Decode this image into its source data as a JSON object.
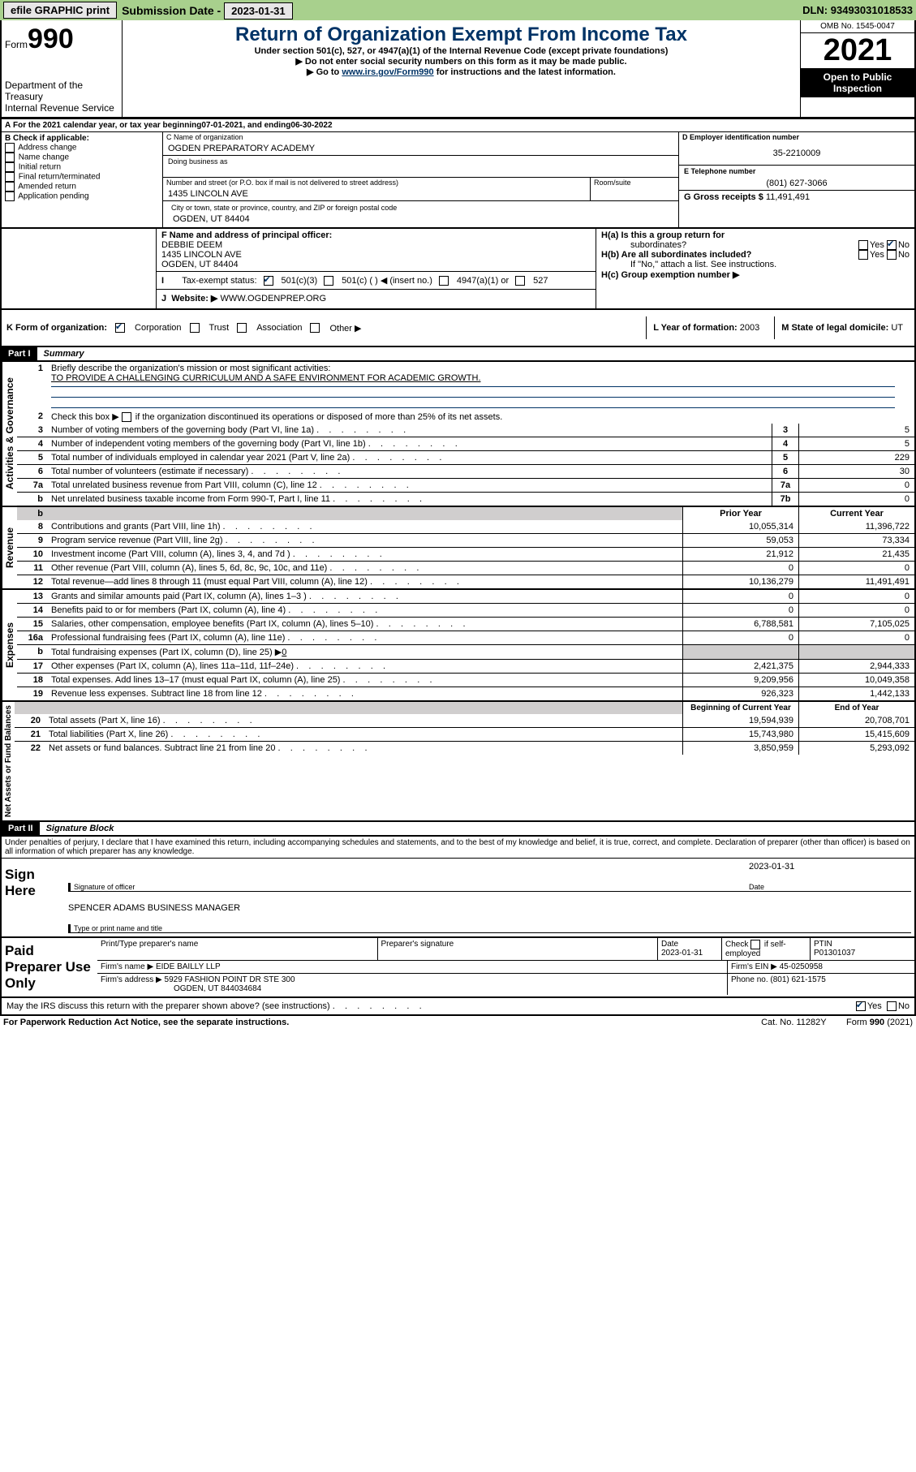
{
  "topbar": {
    "efile": "efile GRAPHIC print",
    "subdate_lbl": "Submission Date - ",
    "subdate": "2023-01-31",
    "dln_lbl": "DLN: ",
    "dln": "93493031018533"
  },
  "hdr": {
    "form": "Form",
    "num": "990",
    "title": "Return of Organization Exempt From Income Tax",
    "sub1": "Under section 501(c), 527, or 4947(a)(1) of the Internal Revenue Code (except private foundations)",
    "sub2": "▶ Do not enter social security numbers on this form as it may be made public.",
    "sub3": "▶ Go to ",
    "link": "www.irs.gov/Form990",
    "sub3b": " for instructions and the latest information.",
    "dept": "Department of the Treasury",
    "irs": "Internal Revenue Service",
    "omb": "OMB No. 1545-0047",
    "year": "2021",
    "inspect": "Open to Public Inspection"
  },
  "A": {
    "txt": "For the 2021 calendar year, or tax year beginning ",
    "beg": "07-01-2021",
    "mid": " , and ending ",
    "end": "06-30-2022"
  },
  "B": {
    "hdr": "B Check if applicable:",
    "items": [
      "Address change",
      "Name change",
      "Initial return",
      "Final return/terminated",
      "Amended return",
      "Application pending"
    ]
  },
  "C": {
    "namehdr": "C Name of organization",
    "name": "OGDEN PREPARATORY ACADEMY",
    "dba": "Doing business as",
    "addrhdr": "Number and street (or P.O. box if mail is not delivered to street address)",
    "room": "Room/suite",
    "addr": "1435 LINCOLN AVE",
    "cityhdr": "City or town, state or province, country, and ZIP or foreign postal code",
    "city": "OGDEN, UT  84404"
  },
  "D": {
    "hdr": "D Employer identification number",
    "ein": "35-2210009"
  },
  "E": {
    "hdr": "E Telephone number",
    "tel": "(801) 627-3066"
  },
  "G": {
    "lbl": "G Gross receipts $ ",
    "val": "11,491,491"
  },
  "F": {
    "hdr": "F Name and address of principal officer:",
    "name": "DEBBIE DEEM",
    "addr1": "1435 LINCOLN AVE",
    "addr2": "OGDEN, UT  84404"
  },
  "H": {
    "a": "H(a)  Is this a group return for",
    "a2": "subordinates?",
    "b": "H(b)  Are all subordinates included?",
    "note": "If \"No,\" attach a list. See instructions.",
    "c": "H(c)  Group exemption number ▶",
    "yes": "Yes",
    "no": "No"
  },
  "I": {
    "lbl": "Tax-exempt status:",
    "c3": "501(c)(3)",
    "c": "501(c) (   ) ◀ (insert no.)",
    "a1": "4947(a)(1) or",
    "s527": "527"
  },
  "J": {
    "lbl": "Website: ▶",
    "val": " WWW.OGDENPREP.ORG"
  },
  "K": {
    "lbl": "K Form of organization:",
    "corp": "Corporation",
    "trust": "Trust",
    "assoc": "Association",
    "other": "Other ▶"
  },
  "L": {
    "lbl": "L Year of formation: ",
    "val": "2003"
  },
  "M": {
    "lbl": "M State of legal domicile: ",
    "val": "UT"
  },
  "part1": {
    "bar": "Part I",
    "lbl": "Summary"
  },
  "gov": {
    "side": "Activities & Governance",
    "l1": "Briefly describe the organization's mission or most significant activities:",
    "l1txt": "TO PROVIDE A CHALLENGING CURRICULUM AND A SAFE ENVIRONMENT FOR ACADEMIC GROWTH.",
    "l2": "Check this box ▶ ",
    "l2b": " if the organization discontinued its operations or disposed of more than 25% of its net assets.",
    "rows": [
      {
        "n": "3",
        "t": "Number of voting members of the governing body (Part VI, line 1a)",
        "b": "3",
        "v": "5"
      },
      {
        "n": "4",
        "t": "Number of independent voting members of the governing body (Part VI, line 1b)",
        "b": "4",
        "v": "5"
      },
      {
        "n": "5",
        "t": "Total number of individuals employed in calendar year 2021 (Part V, line 2a)",
        "b": "5",
        "v": "229"
      },
      {
        "n": "6",
        "t": "Total number of volunteers (estimate if necessary)",
        "b": "6",
        "v": "30"
      },
      {
        "n": "7a",
        "t": "Total unrelated business revenue from Part VIII, column (C), line 12",
        "b": "7a",
        "v": "0"
      },
      {
        "n": "b",
        "t": "Net unrelated business taxable income from Form 990-T, Part I, line 11",
        "b": "7b",
        "v": "0"
      }
    ]
  },
  "rev": {
    "side": "Revenue",
    "pyhdr": "Prior Year",
    "cyhdr": "Current Year",
    "rows": [
      {
        "n": "8",
        "t": "Contributions and grants (Part VIII, line 1h)",
        "py": "10,055,314",
        "cy": "11,396,722"
      },
      {
        "n": "9",
        "t": "Program service revenue (Part VIII, line 2g)",
        "py": "59,053",
        "cy": "73,334"
      },
      {
        "n": "10",
        "t": "Investment income (Part VIII, column (A), lines 3, 4, and 7d )",
        "py": "21,912",
        "cy": "21,435"
      },
      {
        "n": "11",
        "t": "Other revenue (Part VIII, column (A), lines 5, 6d, 8c, 9c, 10c, and 11e)",
        "py": "0",
        "cy": "0"
      },
      {
        "n": "12",
        "t": "Total revenue—add lines 8 through 11 (must equal Part VIII, column (A), line 12)",
        "py": "10,136,279",
        "cy": "11,491,491"
      }
    ]
  },
  "exp": {
    "side": "Expenses",
    "rows": [
      {
        "n": "13",
        "t": "Grants and similar amounts paid (Part IX, column (A), lines 1–3 )",
        "py": "0",
        "cy": "0"
      },
      {
        "n": "14",
        "t": "Benefits paid to or for members (Part IX, column (A), line 4)",
        "py": "0",
        "cy": "0"
      },
      {
        "n": "15",
        "t": "Salaries, other compensation, employee benefits (Part IX, column (A), lines 5–10)",
        "py": "6,788,581",
        "cy": "7,105,025"
      },
      {
        "n": "16a",
        "t": "Professional fundraising fees (Part IX, column (A), line 11e)",
        "py": "0",
        "cy": "0"
      },
      {
        "n": "b",
        "t": "Total fundraising expenses (Part IX, column (D), line 25) ▶",
        "u": "0",
        "grey": true
      },
      {
        "n": "17",
        "t": "Other expenses (Part IX, column (A), lines 11a–11d, 11f–24e)",
        "py": "2,421,375",
        "cy": "2,944,333"
      },
      {
        "n": "18",
        "t": "Total expenses. Add lines 13–17 (must equal Part IX, column (A), line 25)",
        "py": "9,209,956",
        "cy": "10,049,358"
      },
      {
        "n": "19",
        "t": "Revenue less expenses. Subtract line 18 from line 12",
        "py": "926,323",
        "cy": "1,442,133"
      }
    ]
  },
  "na": {
    "side": "Net Assets or Fund Balances",
    "byhdr": "Beginning of Current Year",
    "eyhdr": "End of Year",
    "rows": [
      {
        "n": "20",
        "t": "Total assets (Part X, line 16)",
        "py": "19,594,939",
        "cy": "20,708,701"
      },
      {
        "n": "21",
        "t": "Total liabilities (Part X, line 26)",
        "py": "15,743,980",
        "cy": "15,415,609"
      },
      {
        "n": "22",
        "t": "Net assets or fund balances. Subtract line 21 from line 20",
        "py": "3,850,959",
        "cy": "5,293,092"
      }
    ]
  },
  "part2": {
    "bar": "Part II",
    "lbl": "Signature Block",
    "decl": "Under penalties of perjury, I declare that I have examined this return, including accompanying schedules and statements, and to the best of my knowledge and belief, it is true, correct, and complete. Declaration of preparer (other than officer) is based on all information of which preparer has any knowledge."
  },
  "sign": {
    "lbl": "Sign Here",
    "sig": "Signature of officer",
    "date": "Date",
    "sigdate": "2023-01-31",
    "name": "SPENCER ADAMS  BUSINESS MANAGER",
    "typ": "Type or print name and title"
  },
  "prep": {
    "lbl": "Paid Preparer Use Only",
    "c1": "Print/Type preparer's name",
    "c2": "Preparer's signature",
    "c3": "Date",
    "c3v": "2023-01-31",
    "c4": "Check ",
    "c4b": " if self-employed",
    "c5": "PTIN",
    "c5v": "P01301037",
    "firm": "Firm's name    ▶ ",
    "firmv": "EIDE BAILLY LLP",
    "fein": "Firm's EIN ▶ ",
    "feinv": "45-0250958",
    "faddr": "Firm's address ▶ ",
    "faddrv": "5929 FASHION POINT DR STE 300",
    "fcity": "OGDEN, UT  844034684",
    "ph": "Phone no. ",
    "phv": "(801) 621-1575"
  },
  "discuss": {
    "q": "May the IRS discuss this return with the preparer shown above? (see instructions)",
    "yes": "Yes",
    "no": "No"
  },
  "foot": {
    "pra": "For Paperwork Reduction Act Notice, see the separate instructions.",
    "cat": "Cat. No. 11282Y",
    "form": "Form 990 (2021)"
  }
}
